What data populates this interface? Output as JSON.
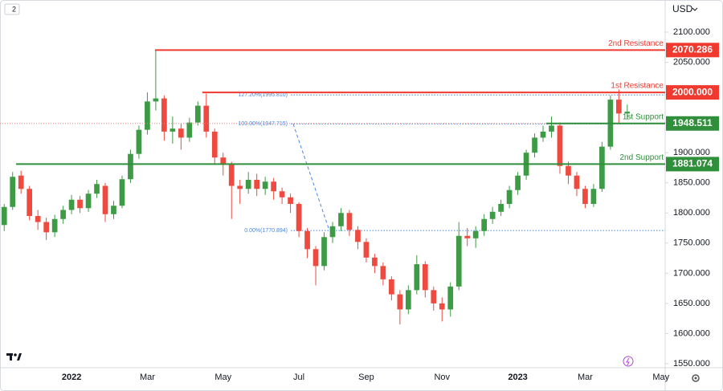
{
  "ui": {
    "interval_badge": "2",
    "currency": "USD"
  },
  "chart_data": {
    "type": "candlestick",
    "categories": [
      null,
      null,
      null,
      null,
      null,
      null,
      null,
      null,
      "2022",
      null,
      null,
      null,
      null,
      null,
      null,
      null,
      null,
      "Mar",
      null,
      null,
      null,
      null,
      null,
      null,
      null,
      null,
      "May",
      null,
      null,
      null,
      null,
      null,
      null,
      null,
      null,
      "Jul",
      null,
      null,
      null,
      null,
      null,
      null,
      null,
      "Sep",
      null,
      null,
      null,
      null,
      null,
      null,
      null,
      null,
      "Nov",
      null,
      null,
      null,
      null,
      null,
      null,
      null,
      null,
      "2023",
      null,
      null,
      null,
      null,
      null,
      null,
      null,
      "Mar",
      null,
      null,
      null,
      null,
      null,
      null,
      null,
      null,
      "May"
    ],
    "open": [
      1780,
      1810,
      1862,
      1840,
      1795,
      1785,
      1768,
      1790,
      1805,
      1822,
      1808,
      1832,
      1845,
      1798,
      1812,
      1856,
      1898,
      1938,
      1985,
      1990,
      1935,
      1940,
      1925,
      1950,
      1978,
      1935,
      1892,
      1880,
      1845,
      1840,
      1855,
      1840,
      1852,
      1836,
      1826,
      1815,
      1770,
      1740,
      1712,
      1760,
      1778,
      1800,
      1772,
      1752,
      1726,
      1712,
      1690,
      1665,
      1640,
      1672,
      1715,
      1672,
      1650,
      1640,
      1678,
      1762,
      1758,
      1770,
      1790,
      1802,
      1815,
      1838,
      1862,
      1900,
      1925,
      1935,
      1945,
      1878,
      1862,
      1840,
      1815,
      1840,
      1910,
      1988,
      1965,
      null,
      null,
      null,
      null
    ],
    "high": [
      1815,
      1868,
      1870,
      1845,
      1805,
      1792,
      1797,
      1812,
      1830,
      1828,
      1838,
      1855,
      1850,
      1820,
      1862,
      1905,
      1945,
      2000,
      2070,
      1995,
      1960,
      1948,
      1958,
      1985,
      1998,
      1940,
      1900,
      1885,
      1855,
      1868,
      1865,
      1860,
      1858,
      1842,
      1832,
      1818,
      1775,
      1745,
      1768,
      1785,
      1808,
      1805,
      1778,
      1758,
      1732,
      1718,
      1695,
      1672,
      1680,
      1730,
      1720,
      1678,
      1660,
      1685,
      1785,
      1775,
      1778,
      1798,
      1810,
      1822,
      1845,
      1868,
      1905,
      1932,
      1945,
      1960,
      1950,
      1885,
      1868,
      1845,
      1848,
      1918,
      1995,
      2005,
      1980,
      null,
      null,
      null,
      null
    ],
    "low": [
      1770,
      1805,
      1832,
      1788,
      1772,
      1755,
      1760,
      1782,
      1798,
      1800,
      1802,
      1825,
      1785,
      1790,
      1808,
      1850,
      1890,
      1930,
      1970,
      1920,
      1915,
      1905,
      1918,
      1945,
      1925,
      1880,
      1862,
      1790,
      1815,
      1832,
      1828,
      1830,
      1822,
      1815,
      1800,
      1760,
      1725,
      1680,
      1705,
      1750,
      1770,
      1762,
      1740,
      1718,
      1700,
      1680,
      1655,
      1615,
      1632,
      1665,
      1660,
      1638,
      1620,
      1628,
      1672,
      1745,
      1742,
      1762,
      1782,
      1795,
      1808,
      1830,
      1855,
      1892,
      1918,
      1925,
      1865,
      1848,
      1828,
      1808,
      1810,
      1835,
      1905,
      1948,
      1955,
      null,
      null,
      null,
      null
    ],
    "close": [
      1810,
      1860,
      1840,
      1795,
      1785,
      1768,
      1790,
      1805,
      1822,
      1808,
      1832,
      1848,
      1798,
      1812,
      1856,
      1898,
      1938,
      1985,
      1990,
      1935,
      1940,
      1925,
      1950,
      1978,
      1935,
      1892,
      1880,
      1845,
      1840,
      1855,
      1840,
      1852,
      1836,
      1826,
      1815,
      1770,
      1740,
      1712,
      1760,
      1778,
      1800,
      1772,
      1752,
      1726,
      1712,
      1690,
      1665,
      1640,
      1672,
      1715,
      1672,
      1650,
      1640,
      1678,
      1762,
      1758,
      1770,
      1790,
      1802,
      1815,
      1838,
      1862,
      1900,
      1925,
      1935,
      1945,
      1878,
      1862,
      1840,
      1815,
      1840,
      1910,
      1988,
      1965,
      1968,
      null,
      null,
      null,
      null
    ],
    "up_color": "#3d9a45",
    "down_color": "#ee4a3f",
    "ylim": [
      1543.3,
      2153.3
    ],
    "yticks": [
      {
        "value": 1550,
        "label": "1550.000"
      },
      {
        "value": 1600,
        "label": "1600.000"
      },
      {
        "value": 1650,
        "label": "1650.000"
      },
      {
        "value": 1700,
        "label": "1700.000"
      },
      {
        "value": 1750,
        "label": "1750.000"
      },
      {
        "value": 1800,
        "label": "1800.000"
      },
      {
        "value": 1850,
        "label": "1850.000"
      },
      {
        "value": 1900,
        "label": "1900.000"
      },
      {
        "value": 1950,
        "label": "1950.000"
      },
      {
        "value": 2000,
        "label": "2000.000"
      },
      {
        "value": 2050,
        "label": "2050.000"
      },
      {
        "value": 2100,
        "label": "2100.000"
      }
    ],
    "levels": [
      {
        "name": "2nd Resistance",
        "value": 2070.286,
        "value_label": "2070.286",
        "color": "#f0392f"
      },
      {
        "name": "1st Resistance",
        "value": 2000,
        "value_label": "2000.000",
        "color": "#f0392f"
      },
      {
        "name": "1st Support",
        "value": 1948.511,
        "value_label": "1948.511",
        "color": "#2f8f3a"
      },
      {
        "name": "2nd Support",
        "value": 1881.074,
        "value_label": "1881.074",
        "color": "#2f8f3a"
      }
    ],
    "fib_levels": [
      {
        "label": "127.20%(1995.810)",
        "value": 1995.81
      },
      {
        "label": "100.00%(1947.715)",
        "value": 1947.715
      },
      {
        "label": "0.00%(1770.894)",
        "value": 1770.894
      }
    ],
    "fib_color": "#4a86e0"
  }
}
